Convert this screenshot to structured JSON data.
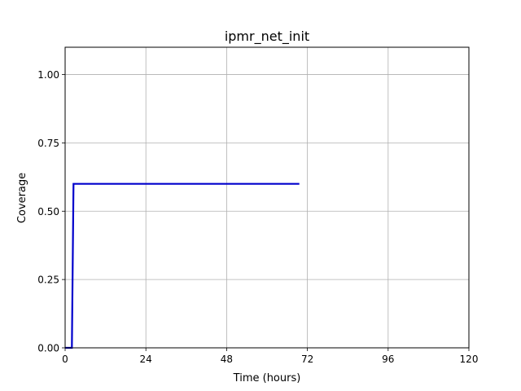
{
  "chart_data": {
    "type": "line",
    "title": "ipmr_net_init",
    "xlabel": "Time (hours)",
    "ylabel": "Coverage",
    "xlim": [
      0,
      120
    ],
    "ylim": [
      0,
      1.1
    ],
    "xticks": [
      0,
      24,
      48,
      72,
      96,
      120
    ],
    "xtick_labels": [
      "0",
      "24",
      "48",
      "72",
      "96",
      "120"
    ],
    "yticks": [
      0.0,
      0.25,
      0.5,
      0.75,
      1.0
    ],
    "ytick_labels": [
      "0.00",
      "0.25",
      "0.50",
      "0.75",
      "1.00"
    ],
    "grid": true,
    "series": [
      {
        "color": "#0000cc",
        "x": [
          0,
          2.0,
          2.5,
          69.6
        ],
        "y": [
          0,
          0,
          0.6,
          0.6
        ]
      }
    ]
  }
}
